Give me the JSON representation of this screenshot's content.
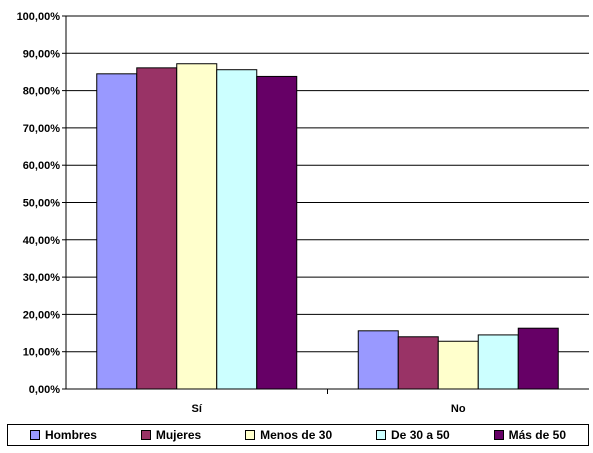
{
  "chart_data": {
    "type": "bar",
    "categories": [
      "Sí",
      "No"
    ],
    "ylim": [
      0,
      100
    ],
    "yticks": [
      "0,00%",
      "10,00%",
      "20,00%",
      "30,00%",
      "40,00%",
      "50,00%",
      "60,00%",
      "70,00%",
      "80,00%",
      "90,00%",
      "100,00%"
    ],
    "grid": true,
    "legend_position": "bottom",
    "series": [
      {
        "name": "Hombres",
        "values": [
          84.5,
          15.6
        ],
        "color": "#9999ff"
      },
      {
        "name": "Mujeres",
        "values": [
          86.1,
          14.0
        ],
        "color": "#993366"
      },
      {
        "name": "Menos de 30",
        "values": [
          87.2,
          12.8
        ],
        "color": "#ffffcc"
      },
      {
        "name": "De 30 a 50",
        "values": [
          85.6,
          14.5
        ],
        "color": "#ccffff"
      },
      {
        "name": "Más de 50",
        "values": [
          83.8,
          16.3
        ],
        "color": "#660066"
      }
    ]
  }
}
